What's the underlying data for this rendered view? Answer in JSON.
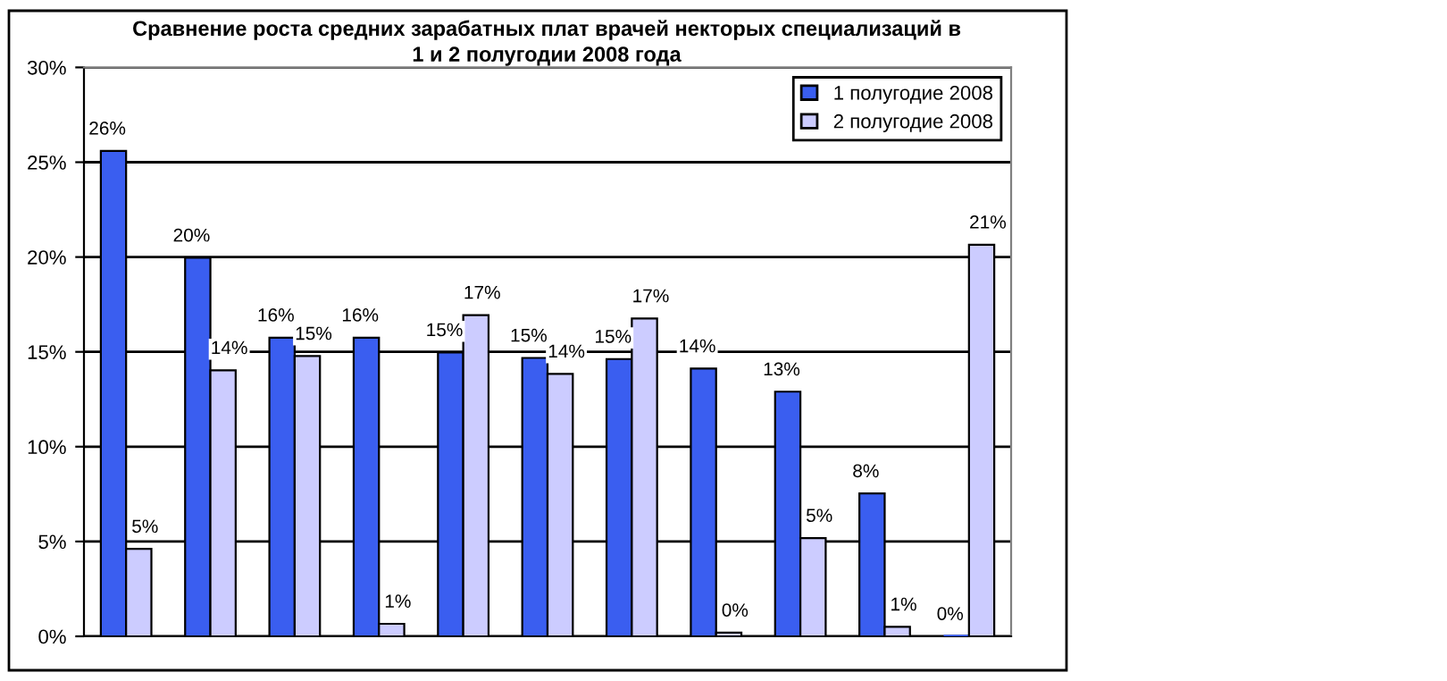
{
  "chart_data": {
    "type": "bar",
    "title": "Сравнение роста средних зарабатных плат врачей некторых специализаций в\n1 и 2 полугодии 2008 года",
    "categories": [
      null,
      null,
      null,
      null,
      null,
      null,
      null,
      null,
      null,
      null,
      null
    ],
    "series": [
      {
        "name": "1 полугодие 2008",
        "color": "#3a5ef0",
        "values": [
          25.6,
          19.96,
          15.75,
          15.75,
          14.97,
          14.68,
          14.62,
          14.12,
          12.9,
          7.53,
          0
        ],
        "value_labels": [
          "26%",
          "20%",
          "16%",
          "16%",
          "15%",
          "15%",
          "15%",
          "14%",
          "13%",
          "8%",
          "0%"
        ]
      },
      {
        "name": "2 полугодие 2008",
        "color": "#ccccff",
        "values": [
          4.61,
          14.03,
          14.78,
          0.66,
          16.94,
          13.84,
          16.76,
          0.19,
          5.18,
          0.5,
          20.65
        ],
        "value_labels": [
          "5%",
          "14%",
          "15%",
          "1%",
          "17%",
          "14%",
          "17%",
          "0%",
          "5%",
          "1%",
          "21%"
        ]
      }
    ],
    "ylim": [
      0,
      30
    ],
    "yticks": [
      {
        "value": 0,
        "label": "0%"
      },
      {
        "value": 5,
        "label": "5%"
      },
      {
        "value": 10,
        "label": "10%"
      },
      {
        "value": 15,
        "label": "15%"
      },
      {
        "value": 20,
        "label": "20%"
      },
      {
        "value": 25,
        "label": "25%"
      },
      {
        "value": 30,
        "label": "30%"
      }
    ],
    "grid": "y",
    "legend": "top right"
  }
}
